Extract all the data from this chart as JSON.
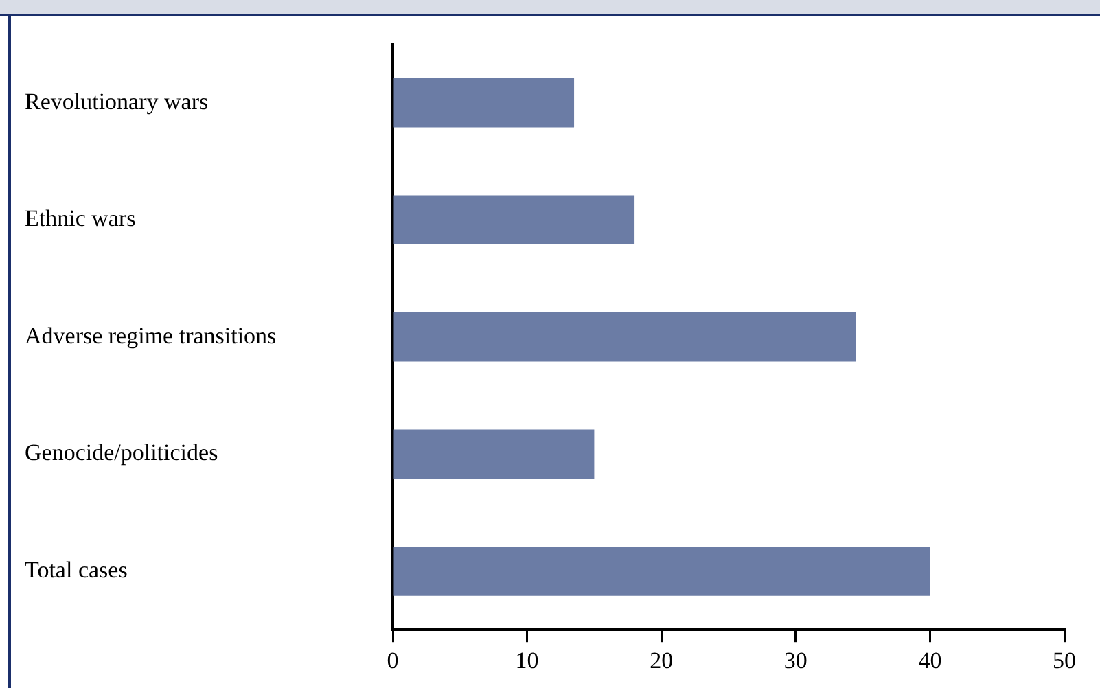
{
  "chart_data": {
    "type": "bar",
    "orientation": "horizontal",
    "categories": [
      "Revolutionary wars",
      "Ethnic wars",
      "Adverse regime transitions",
      "Genocide/politicides",
      "Total cases"
    ],
    "values": [
      13.5,
      18,
      34.5,
      15,
      40
    ],
    "color": "#6b7ca5",
    "xlim": [
      0,
      50
    ],
    "xticks": [
      0,
      10,
      20,
      30,
      40,
      50
    ]
  }
}
